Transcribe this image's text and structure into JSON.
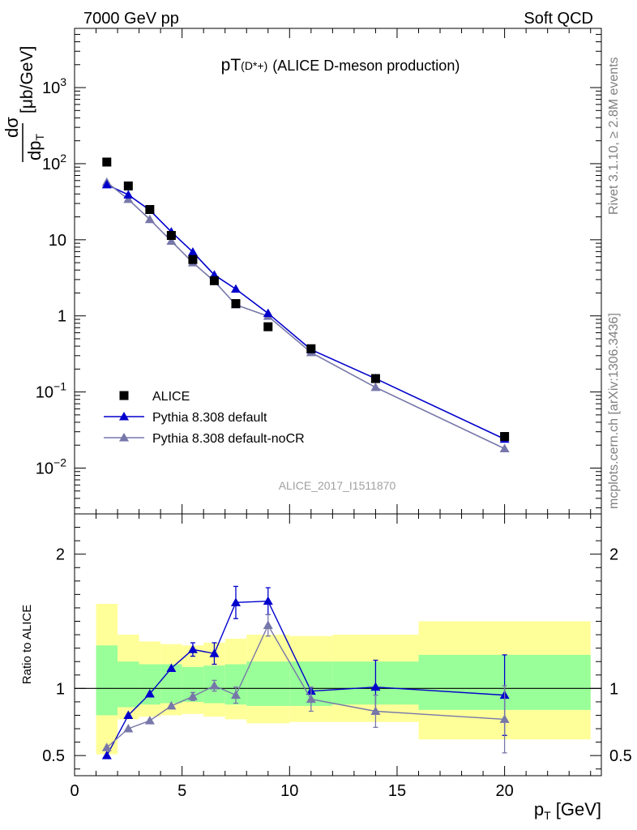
{
  "header": {
    "left": "7000 GeV pp",
    "right": "Soft QCD",
    "title_main": "pT",
    "title_sub": "(D*+)",
    "title_rest": "(ALICE D-meson production)",
    "analysis_id": "ALICE_2017_I1511870",
    "side_rivet": "Rivet 3.1.10, ≥ 2.8M events",
    "side_mcplots": "mcplots.cern.ch [arXiv:1306.3436]"
  },
  "axes": {
    "ylabel_top": "dσ/dp_T [μb/GeV]",
    "ylabel_bottom": "Ratio to ALICE",
    "xlabel": "p_T [GeV]"
  },
  "chart_data": [
    {
      "type": "scatter",
      "panel": "main",
      "title": "pT(D*+) (ALICE D-meson production)",
      "xlabel": "p_T [GeV]",
      "ylabel": "dσ/dp_T [μb/GeV]",
      "log_y": true,
      "xlim": [
        0,
        24.5
      ],
      "ylim": [
        0.0025,
        6000
      ],
      "y_ticks": [
        "10^-2",
        "10^-1",
        "1",
        "10",
        "10^2",
        "10^3"
      ],
      "x_ticks": [
        0,
        5,
        10,
        15,
        20
      ],
      "legend_position": "bottom-left",
      "series": [
        {
          "name": "ALICE",
          "marker": "square",
          "color": "#000000",
          "x": [
            1.5,
            2.5,
            3.5,
            4.5,
            5.5,
            6.5,
            7.5,
            9,
            11,
            14,
            20
          ],
          "y": [
            105,
            51,
            25,
            11.4,
            5.5,
            2.9,
            1.45,
            0.72,
            0.37,
            0.15,
            0.026
          ]
        },
        {
          "name": "Pythia 8.308 default",
          "marker": "triangle",
          "color": "#0000cc",
          "x": [
            1.5,
            2.5,
            3.5,
            4.5,
            5.5,
            6.5,
            7.5,
            9,
            11,
            14,
            20
          ],
          "y": [
            53,
            39,
            24.5,
            12.7,
            6.9,
            3.45,
            2.25,
            1.08,
            0.36,
            0.15,
            0.024
          ]
        },
        {
          "name": "Pythia 8.308 default-noCR",
          "marker": "triangle",
          "color": "#7777aa",
          "x": [
            1.5,
            2.5,
            3.5,
            4.5,
            5.5,
            6.5,
            7.5,
            9,
            11,
            14,
            20
          ],
          "y": [
            57,
            34,
            18.5,
            9.6,
            5.0,
            2.85,
            1.4,
            0.99,
            0.33,
            0.115,
            0.018
          ]
        }
      ]
    },
    {
      "type": "line",
      "panel": "ratio",
      "ylabel": "Ratio to ALICE",
      "xlabel": "p_T [GeV]",
      "xlim": [
        0,
        24.5
      ],
      "ylim": [
        0.35,
        2.3
      ],
      "y_ticks": [
        0.5,
        1,
        2
      ],
      "x_ticks": [
        0,
        5,
        10,
        15,
        20
      ],
      "reference_line": 1,
      "bands": {
        "edges": [
          1,
          2,
          3,
          4,
          5,
          6,
          7,
          8,
          10,
          12,
          16,
          24
        ],
        "green": [
          [
            0.8,
            1.32
          ],
          [
            0.86,
            1.2
          ],
          [
            0.88,
            1.18
          ],
          [
            0.89,
            1.18
          ],
          [
            0.9,
            1.16
          ],
          [
            0.89,
            1.17
          ],
          [
            0.88,
            1.18
          ],
          [
            0.87,
            1.2
          ],
          [
            0.87,
            1.2
          ],
          [
            0.88,
            1.2
          ],
          [
            0.84,
            1.25
          ]
        ],
        "yellow": [
          [
            0.51,
            1.63
          ],
          [
            0.77,
            1.4
          ],
          [
            0.79,
            1.35
          ],
          [
            0.8,
            1.33
          ],
          [
            0.81,
            1.32
          ],
          [
            0.79,
            1.34
          ],
          [
            0.77,
            1.37
          ],
          [
            0.74,
            1.4
          ],
          [
            0.75,
            1.39
          ],
          [
            0.75,
            1.4
          ],
          [
            0.62,
            1.5
          ]
        ]
      },
      "series": [
        {
          "name": "Pythia 8.308 default",
          "color": "#0000cc",
          "x": [
            1.5,
            2.5,
            3.5,
            4.5,
            5.5,
            6.5,
            7.5,
            9,
            11,
            14,
            20
          ],
          "y": [
            0.5,
            0.8,
            0.96,
            1.15,
            1.29,
            1.26,
            1.64,
            1.65,
            0.98,
            1.01,
            0.95
          ],
          "err": [
            0,
            0,
            0,
            0,
            0.05,
            0.08,
            0.12,
            0.1,
            0,
            0.2,
            0.3
          ]
        },
        {
          "name": "Pythia 8.308 default-noCR",
          "color": "#7777aa",
          "x": [
            1.5,
            2.5,
            3.5,
            4.5,
            5.5,
            6.5,
            7.5,
            9,
            11,
            14,
            20
          ],
          "y": [
            0.56,
            0.7,
            0.76,
            0.87,
            0.94,
            1.02,
            0.95,
            1.47,
            0.92,
            0.83,
            0.77
          ],
          "err": [
            0,
            0,
            0,
            0,
            0.03,
            0.04,
            0.06,
            0.08,
            0.09,
            0.12,
            0.25
          ]
        }
      ]
    }
  ]
}
